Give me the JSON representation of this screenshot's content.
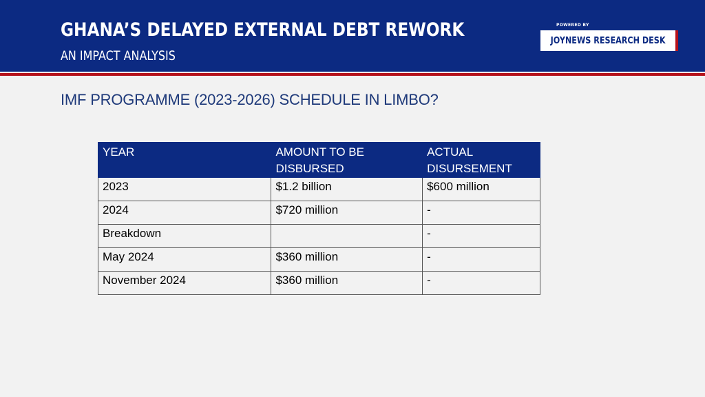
{
  "header": {
    "title": "GHANA’S DELAYED EXTERNAL DEBT REWORK",
    "subtitle": "AN IMPACT ANALYSIS",
    "powered_by": "POWERED BY",
    "brand": "JOYNEWS RESEARCH DESK"
  },
  "section": {
    "heading": "IMF PROGRAMME (2023-2026) SCHEDULE IN LIMBO?"
  },
  "table": {
    "headers": [
      "YEAR",
      "AMOUNT TO BE DISBURSED",
      "ACTUAL DISURSEMENT"
    ],
    "rows": [
      [
        "2023",
        "$1.2 billion",
        "$600 million"
      ],
      [
        "2024",
        "$720 million",
        "-"
      ],
      [
        "Breakdown",
        "",
        "-"
      ],
      [
        "May 2024",
        "$360 million",
        "-"
      ],
      [
        "November 2024",
        "$360 million",
        "-"
      ]
    ]
  },
  "colors": {
    "header_bg": "#0c2a82",
    "accent_red": "#b5121b",
    "page_bg": "#f2f2f2",
    "heading_text": "#1f3a7a"
  }
}
